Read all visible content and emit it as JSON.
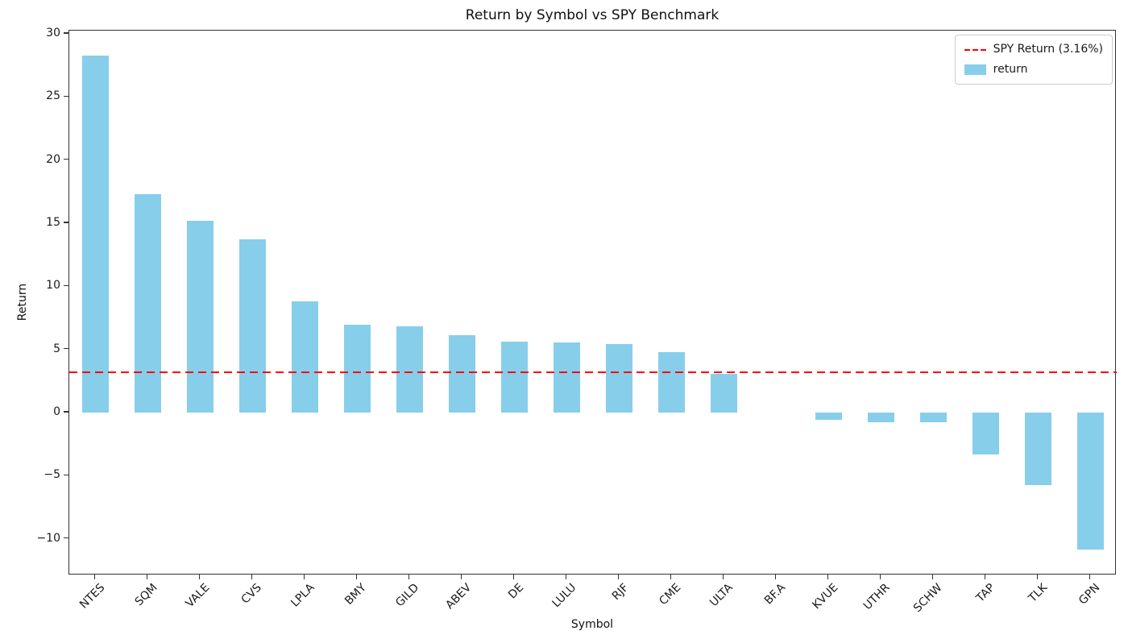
{
  "chart_data": {
    "type": "bar",
    "title": "Return by Symbol vs SPY Benchmark",
    "xlabel": "Symbol",
    "ylabel": "Return",
    "categories": [
      "NTES",
      "SQM",
      "VALE",
      "CVS",
      "LPLA",
      "BMY",
      "GILD",
      "ABEV",
      "DE",
      "LULU",
      "RJF",
      "CME",
      "ULTA",
      "BF.A",
      "KVUE",
      "UTHR",
      "SCHW",
      "TAP",
      "TLK",
      "GPN"
    ],
    "values": [
      28.3,
      17.3,
      15.2,
      13.7,
      8.8,
      6.95,
      6.85,
      6.1,
      5.6,
      5.55,
      5.4,
      4.8,
      3.05,
      0.0,
      -0.6,
      -0.8,
      -0.8,
      -3.3,
      -5.75,
      -10.85
    ],
    "series_label": "return",
    "benchmark": {
      "label": "SPY Return (3.16%)",
      "value": 3.16
    },
    "yticks": [
      30,
      25,
      20,
      15,
      10,
      5,
      0,
      -5,
      -10
    ],
    "ytick_labels": [
      "30",
      "25",
      "20",
      "15",
      "10",
      "5",
      "0",
      "−5",
      "−10"
    ],
    "ylim": [
      -12.9,
      30.25
    ],
    "bar_color": "#87CEEB",
    "benchmark_color": "#ff0000",
    "axis_color": "#333333",
    "legend_position": "upper right",
    "grid": false,
    "bar_width_fraction": 0.5
  }
}
